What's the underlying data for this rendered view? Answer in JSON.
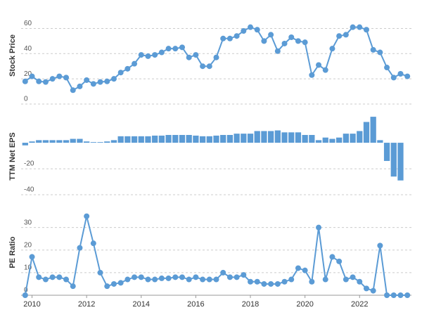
{
  "chart_data": [
    {
      "type": "line",
      "ylabel": "Stock Price",
      "x": [
        2009.75,
        2010,
        2010.25,
        2010.5,
        2010.75,
        2011,
        2011.25,
        2011.5,
        2011.75,
        2012,
        2012.25,
        2012.5,
        2012.75,
        2013,
        2013.25,
        2013.5,
        2013.75,
        2014,
        2014.25,
        2014.5,
        2014.75,
        2015,
        2015.25,
        2015.5,
        2015.75,
        2016,
        2016.25,
        2016.5,
        2016.75,
        2017,
        2017.25,
        2017.5,
        2017.75,
        2018,
        2018.25,
        2018.5,
        2018.75,
        2019,
        2019.25,
        2019.5,
        2019.75,
        2020,
        2020.25,
        2020.5,
        2020.75,
        2021,
        2021.25,
        2021.5,
        2021.75,
        2022,
        2022.25,
        2022.5,
        2022.75,
        2023,
        2023.25,
        2023.5,
        2023.75
      ],
      "values": [
        18,
        22,
        18,
        17.5,
        20,
        22,
        21,
        11,
        14,
        19,
        16,
        17.5,
        18,
        20,
        25,
        28,
        32,
        39,
        38,
        39,
        41,
        44,
        44,
        45,
        37,
        39,
        30,
        30,
        37,
        52,
        52,
        54,
        58,
        61,
        59,
        50,
        55,
        42,
        48,
        53,
        50,
        49,
        23,
        31,
        27,
        44,
        54,
        55,
        61,
        61,
        59,
        43,
        41,
        29,
        21,
        24,
        22
      ],
      "color": "#5b9bd5",
      "xlim": [
        2009.6,
        2023.9
      ],
      "ylim": [
        0,
        77
      ],
      "yticks": [
        0,
        20,
        40,
        60
      ],
      "grid": true
    },
    {
      "type": "bar",
      "ylabel": "TTM Net EPS",
      "x": [
        2009.75,
        2010,
        2010.25,
        2010.5,
        2010.75,
        2011,
        2011.25,
        2011.5,
        2011.75,
        2012,
        2012.25,
        2012.5,
        2012.75,
        2013,
        2013.25,
        2013.5,
        2013.75,
        2014,
        2014.25,
        2014.5,
        2014.75,
        2015,
        2015.25,
        2015.5,
        2015.75,
        2016,
        2016.25,
        2016.5,
        2016.75,
        2017,
        2017.25,
        2017.5,
        2017.75,
        2018,
        2018.25,
        2018.5,
        2018.75,
        2019,
        2019.25,
        2019.5,
        2019.75,
        2020,
        2020.25,
        2020.5,
        2020.75,
        2021,
        2021.25,
        2021.5,
        2021.75,
        2022,
        2022.25,
        2022.5,
        2022.75,
        2023,
        2023.25,
        2023.5,
        2023.75
      ],
      "values": [
        -2,
        1,
        2,
        2,
        2,
        2,
        2,
        3,
        3,
        1,
        0.5,
        0.5,
        1,
        2,
        5,
        5,
        5,
        5,
        5,
        5.5,
        5.5,
        6,
        6,
        6,
        6,
        5.5,
        5,
        5,
        5.5,
        6,
        6,
        7,
        7,
        7,
        9,
        9,
        9,
        9.5,
        8,
        8,
        8,
        6,
        6,
        2,
        4,
        3,
        4,
        7,
        7,
        9,
        16,
        20,
        2,
        -14,
        -26,
        -29,
        0
      ],
      "color": "#5b9bd5",
      "xlim": [
        2009.6,
        2023.9
      ],
      "ylim": [
        -47,
        26
      ],
      "yticks": [
        -40,
        -20
      ],
      "grid": true
    },
    {
      "type": "line",
      "ylabel": "PE Ratio",
      "x": [
        2009.75,
        2010,
        2010.25,
        2010.5,
        2010.75,
        2011,
        2011.25,
        2011.5,
        2011.75,
        2012,
        2012.25,
        2012.5,
        2012.75,
        2013,
        2013.25,
        2013.5,
        2013.75,
        2014,
        2014.25,
        2014.5,
        2014.75,
        2015,
        2015.25,
        2015.5,
        2015.75,
        2016,
        2016.25,
        2016.5,
        2016.75,
        2017,
        2017.25,
        2017.5,
        2017.75,
        2018,
        2018.25,
        2018.5,
        2018.75,
        2019,
        2019.25,
        2019.5,
        2019.75,
        2020,
        2020.25,
        2020.5,
        2020.75,
        2021,
        2021.25,
        2021.5,
        2021.75,
        2022,
        2022.25,
        2022.5,
        2022.75,
        2023,
        2023.25,
        2023.5,
        2023.75
      ],
      "values": [
        0,
        17,
        8,
        7,
        8,
        8,
        7,
        4,
        21,
        35,
        23,
        10,
        4,
        5,
        5.5,
        7,
        8,
        8,
        7,
        7,
        7.5,
        7.5,
        8,
        8,
        7,
        8,
        7,
        7,
        7,
        10,
        8,
        8,
        9,
        6,
        6,
        5,
        5,
        5,
        6,
        7,
        12,
        11,
        6,
        30,
        7,
        17,
        15,
        7,
        8,
        6,
        3,
        2,
        22,
        0,
        0,
        0,
        0
      ],
      "color": "#5b9bd5",
      "xlim": [
        2009.6,
        2023.9
      ],
      "ylim": [
        0,
        38
      ],
      "yticks": [
        0,
        10,
        20,
        30
      ],
      "grid": true,
      "xticks": [
        2010,
        2012,
        2014,
        2016,
        2018,
        2020,
        2022
      ]
    }
  ]
}
